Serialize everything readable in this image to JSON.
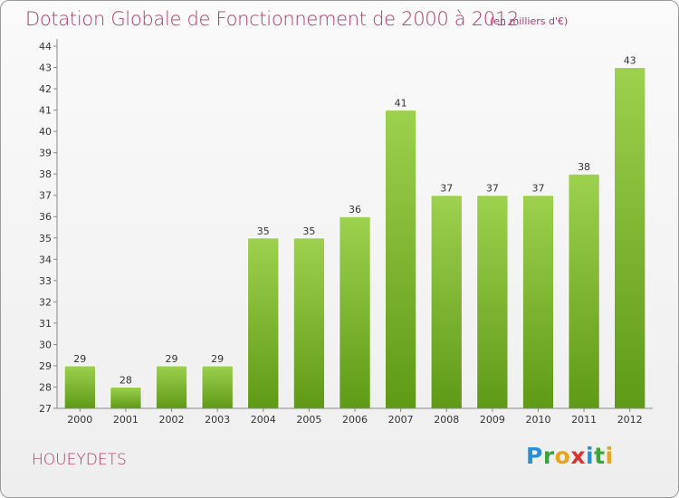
{
  "chart_data": {
    "type": "bar",
    "title": "Dotation Globale de Fonctionnement de 2000 à 2012",
    "subtitle": "(en milliers d'€)",
    "xlabel": "",
    "ylabel": "",
    "categories": [
      "2000",
      "2001",
      "2002",
      "2003",
      "2004",
      "2005",
      "2006",
      "2007",
      "2008",
      "2009",
      "2010",
      "2011",
      "2012"
    ],
    "values": [
      29,
      28,
      29,
      29,
      35,
      35,
      36,
      41,
      37,
      37,
      37,
      38,
      43
    ],
    "ylim": [
      27,
      44
    ],
    "yticks": [
      27,
      28,
      29,
      30,
      31,
      32,
      33,
      34,
      35,
      36,
      37,
      38,
      39,
      40,
      41,
      42,
      43,
      44
    ],
    "grid": false,
    "legend": "none",
    "bar_color_top": "#9dd14e",
    "bar_color_bottom": "#5e9a16",
    "axis_color": "#888888"
  },
  "footer": {
    "commune": "HOUEYDETS",
    "logo_letters": [
      "P",
      "r",
      "o",
      "x",
      "i",
      "t",
      "i"
    ],
    "logo_colors": [
      "#2a8fd6",
      "#3aa63a",
      "#e8a41c",
      "#e03030",
      "#2a8fd6",
      "#3aa63a",
      "#e8a41c"
    ]
  },
  "title_color": "#b03a6e"
}
